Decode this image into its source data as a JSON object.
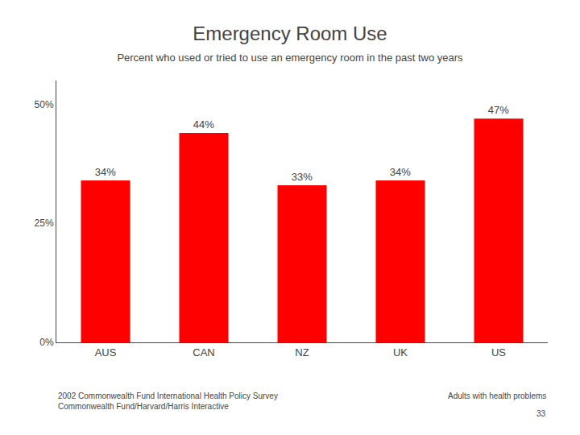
{
  "chart_data": {
    "type": "bar",
    "title": "Emergency Room Use",
    "subtitle": "Percent who used or tried to use an emergency room in the past two years",
    "categories": [
      "AUS",
      "CAN",
      "NZ",
      "UK",
      "US"
    ],
    "values": [
      34,
      44,
      33,
      34,
      47
    ],
    "value_labels": [
      "34%",
      "44%",
      "33%",
      "34%",
      "47%"
    ],
    "color": "#ff0000",
    "ylim": [
      0,
      55
    ],
    "yticks": [
      {
        "value": 0,
        "label": "0%"
      },
      {
        "value": 25,
        "label": "25%"
      },
      {
        "value": 50,
        "label": "50%"
      }
    ],
    "grid": false,
    "annotations": [
      "2002 Commonwealth Fund International Health Policy Survey\nCommonwealth Fund/Harvard/Harris Interactive",
      "Adults with health problems",
      "33"
    ]
  }
}
